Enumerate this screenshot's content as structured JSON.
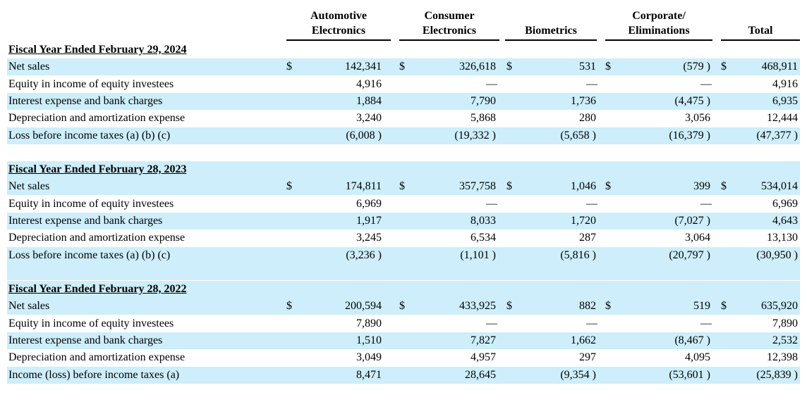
{
  "columns": {
    "automotive": [
      "Automotive",
      "Electronics"
    ],
    "consumer": [
      "Consumer",
      "Electronics"
    ],
    "biometrics": [
      "Biometrics"
    ],
    "corporate": [
      "Corporate/",
      "Eliminations"
    ],
    "total": [
      "Total"
    ]
  },
  "currency_symbol": "$",
  "sections": [
    {
      "title": "Fiscal Year Ended February 29, 2024",
      "rows": [
        {
          "label": "Net sales",
          "currency": true,
          "values": [
            "142,341",
            "326,618",
            "531",
            "(579 )",
            "468,911"
          ]
        },
        {
          "label": "Equity in income of equity investees",
          "currency": false,
          "values": [
            "4,916",
            "—",
            "—",
            "—",
            "4,916"
          ]
        },
        {
          "label": "Interest expense and bank charges",
          "currency": false,
          "values": [
            "1,884",
            "7,790",
            "1,736",
            "(4,475 )",
            "6,935"
          ]
        },
        {
          "label": "Depreciation and amortization expense",
          "currency": false,
          "values": [
            "3,240",
            "5,868",
            "280",
            "3,056",
            "12,444"
          ]
        },
        {
          "label": "Loss before income taxes (a) (b) (c)",
          "currency": false,
          "values": [
            "(6,008 )",
            "(19,332 )",
            "(5,658 )",
            "(16,379 )",
            "(47,377 )"
          ]
        }
      ]
    },
    {
      "title": "Fiscal Year Ended February 28, 2023",
      "rows": [
        {
          "label": "Net sales",
          "currency": true,
          "values": [
            "174,811",
            "357,758",
            "1,046",
            "399",
            "534,014"
          ]
        },
        {
          "label": "Equity in income of equity investees",
          "currency": false,
          "values": [
            "6,969",
            "—",
            "—",
            "—",
            "6,969"
          ]
        },
        {
          "label": "Interest expense and bank charges",
          "currency": false,
          "values": [
            "1,917",
            "8,033",
            "1,720",
            "(7,027 )",
            "4,643"
          ]
        },
        {
          "label": "Depreciation and amortization expense",
          "currency": false,
          "values": [
            "3,245",
            "6,534",
            "287",
            "3,064",
            "13,130"
          ]
        },
        {
          "label": "Loss before income taxes (a) (b) (c)",
          "currency": false,
          "values": [
            "(3,236 )",
            "(1,101 )",
            "(5,816 )",
            "(20,797 )",
            "(30,950 )"
          ]
        }
      ]
    },
    {
      "title": "Fiscal Year Ended February 28, 2022",
      "rows": [
        {
          "label": "Net sales",
          "currency": true,
          "values": [
            "200,594",
            "433,925",
            "882",
            "519",
            "635,920"
          ]
        },
        {
          "label": "Equity in income of equity investees",
          "currency": false,
          "values": [
            "7,890",
            "—",
            "—",
            "—",
            "7,890"
          ]
        },
        {
          "label": "Interest expense and bank charges",
          "currency": false,
          "values": [
            "1,510",
            "7,827",
            "1,662",
            "(8,467 )",
            "2,532"
          ]
        },
        {
          "label": "Depreciation and amortization expense",
          "currency": false,
          "values": [
            "3,049",
            "4,957",
            "297",
            "4,095",
            "12,398"
          ]
        },
        {
          "label": "Income (loss) before income taxes (a)",
          "currency": false,
          "values": [
            "8,471",
            "28,645",
            "(9,354 )",
            "(53,601 )",
            "(25,839 )"
          ]
        }
      ]
    }
  ]
}
